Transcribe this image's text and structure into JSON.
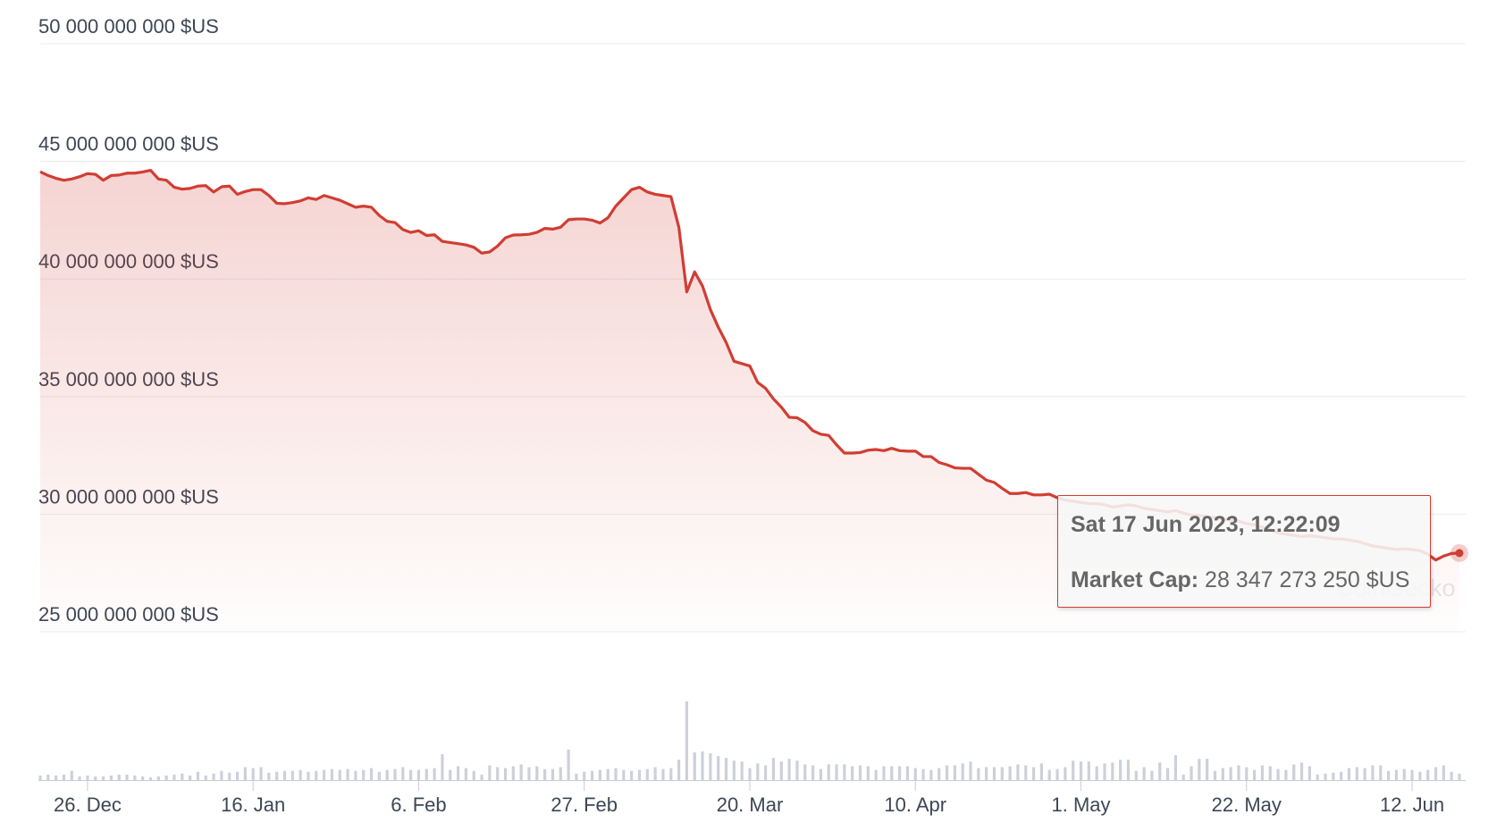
{
  "chart_data": {
    "type": "line",
    "categories": [
      null,
      null,
      null,
      null,
      null,
      null,
      "26. Dec",
      null,
      null,
      null,
      null,
      null,
      null,
      null,
      null,
      null,
      null,
      null,
      null,
      null,
      null,
      null,
      null,
      null,
      null,
      null,
      null,
      "16. Jan",
      null,
      null,
      null,
      null,
      null,
      null,
      null,
      null,
      null,
      null,
      null,
      null,
      null,
      null,
      null,
      null,
      null,
      null,
      null,
      null,
      "6. Feb",
      null,
      null,
      null,
      null,
      null,
      null,
      null,
      null,
      null,
      null,
      null,
      null,
      null,
      null,
      null,
      null,
      null,
      null,
      null,
      null,
      "27. Feb",
      null,
      null,
      null,
      null,
      null,
      null,
      null,
      null,
      null,
      null,
      null,
      null,
      null,
      null,
      null,
      null,
      null,
      null,
      null,
      null,
      "20. Mar",
      null,
      null,
      null,
      null,
      null,
      null,
      null,
      null,
      null,
      null,
      null,
      null,
      null,
      null,
      null,
      null,
      null,
      null,
      null,
      null,
      "10. Apr",
      null,
      null,
      null,
      null,
      null,
      null,
      null,
      null,
      null,
      null,
      null,
      null,
      null,
      null,
      null,
      null,
      null,
      null,
      null,
      null,
      "1. May",
      null,
      null,
      null,
      null,
      null,
      null,
      null,
      null,
      null,
      null,
      null,
      null,
      null,
      null,
      null,
      null,
      null,
      null,
      null,
      null,
      "22. May",
      null,
      null,
      null,
      null,
      null,
      null,
      null,
      null,
      null,
      null,
      null,
      null,
      null,
      null,
      null,
      null,
      null,
      null,
      null,
      null,
      "12. Jun",
      null,
      null,
      null,
      null,
      null,
      null
    ],
    "series": [
      {
        "color": "#d13d33",
        "values": [
          44560000000.0,
          44400000000.0,
          44280000000.0,
          44200000000.0,
          44250000000.0,
          44350000000.0,
          44480000000.0,
          44450000000.0,
          44200000000.0,
          44400000000.0,
          44420000000.0,
          44500000000.0,
          44500000000.0,
          44550000000.0,
          44620000000.0,
          44250000000.0,
          44200000000.0,
          43900000000.0,
          43820000000.0,
          43850000000.0,
          43950000000.0,
          43970000000.0,
          43700000000.0,
          43920000000.0,
          43950000000.0,
          43600000000.0,
          43720000000.0,
          43800000000.0,
          43800000000.0,
          43550000000.0,
          43220000000.0,
          43200000000.0,
          43250000000.0,
          43320000000.0,
          43450000000.0,
          43380000000.0,
          43550000000.0,
          43450000000.0,
          43350000000.0,
          43200000000.0,
          43050000000.0,
          43100000000.0,
          43050000000.0,
          42700000000.0,
          42450000000.0,
          42400000000.0,
          42100000000.0,
          41980000000.0,
          42050000000.0,
          41850000000.0,
          41880000000.0,
          41600000000.0,
          41550000000.0,
          41500000000.0,
          41450000000.0,
          41350000000.0,
          41100000000.0,
          41150000000.0,
          41400000000.0,
          41750000000.0,
          41870000000.0,
          41880000000.0,
          41900000000.0,
          41980000000.0,
          42150000000.0,
          42120000000.0,
          42200000000.0,
          42520000000.0,
          42550000000.0,
          42550000000.0,
          42500000000.0,
          42380000000.0,
          42600000000.0,
          43100000000.0,
          43450000000.0,
          43800000000.0,
          43900000000.0,
          43700000000.0,
          43600000000.0,
          43550000000.0,
          43500000000.0,
          42200000000.0,
          39450000000.0,
          40300000000.0,
          39700000000.0,
          38700000000.0,
          37950000000.0,
          37300000000.0,
          36500000000.0,
          36400000000.0,
          36300000000.0,
          35600000000.0,
          35350000000.0,
          34900000000.0,
          34550000000.0,
          34120000000.0,
          34100000000.0,
          33900000000.0,
          33550000000.0,
          33400000000.0,
          33350000000.0,
          32950000000.0,
          32600000000.0,
          32600000000.0,
          32620000000.0,
          32720000000.0,
          32750000000.0,
          32700000000.0,
          32800000000.0,
          32700000000.0,
          32680000000.0,
          32680000000.0,
          32450000000.0,
          32450000000.0,
          32200000000.0,
          32100000000.0,
          31970000000.0,
          31950000000.0,
          31950000000.0,
          31700000000.0,
          31450000000.0,
          31350000000.0,
          31100000000.0,
          30880000000.0,
          30880000000.0,
          30920000000.0,
          30820000000.0,
          30820000000.0,
          30850000000.0,
          30700000000.0,
          30600000000.0,
          30550000000.0,
          30500000000.0,
          30450000000.0,
          30450000000.0,
          30400000000.0,
          30300000000.0,
          30350000000.0,
          30400000000.0,
          30350000000.0,
          30250000000.0,
          30200000000.0,
          30150000000.0,
          30100000000.0,
          30150000000.0,
          30050000000.0,
          29950000000.0,
          29950000000.0,
          29900000000.0,
          29850000000.0,
          29800000000.0,
          29750000000.0,
          29700000000.0,
          29600000000.0,
          29550000000.0,
          29450000000.0,
          29350000000.0,
          29200000000.0,
          29150000000.0,
          29100000000.0,
          29050000000.0,
          29080000000.0,
          29050000000.0,
          29000000000.0,
          28950000000.0,
          28950000000.0,
          28900000000.0,
          28850000000.0,
          28750000000.0,
          28650000000.0,
          28600000000.0,
          28550000000.0,
          28500000000.0,
          28520000000.0,
          28500000000.0,
          28450000000.0,
          28300000000.0,
          28050000000.0,
          28220000000.0,
          28330000000.0,
          28347273250
        ]
      }
    ],
    "volume": {
      "color": "#cdd0dc",
      "values": [
        5,
        6,
        5,
        6,
        10,
        4,
        5,
        4,
        4,
        5,
        6,
        6,
        5,
        4,
        3,
        4,
        5,
        6,
        7,
        5,
        9,
        5,
        7,
        10,
        8,
        9,
        14,
        13,
        14,
        8,
        9,
        10,
        10,
        11,
        9,
        10,
        11,
        12,
        11,
        12,
        10,
        11,
        13,
        9,
        11,
        12,
        14,
        11,
        11,
        12,
        13,
        28,
        11,
        15,
        13,
        10,
        6,
        16,
        14,
        13,
        15,
        17,
        14,
        15,
        12,
        12,
        14,
        33,
        7,
        9,
        10,
        11,
        12,
        13,
        11,
        10,
        11,
        12,
        14,
        12,
        13,
        22,
        85,
        30,
        31,
        29,
        26,
        24,
        21,
        20,
        13,
        18,
        16,
        24,
        20,
        23,
        21,
        17,
        16,
        12,
        17,
        17,
        17,
        15,
        16,
        15,
        11,
        15,
        15,
        15,
        15,
        13,
        12,
        11,
        13,
        16,
        16,
        18,
        20,
        13,
        14,
        14,
        14,
        15,
        17,
        16,
        14,
        18,
        11,
        12,
        14,
        21,
        20,
        20,
        15,
        18,
        19,
        22,
        22,
        10,
        14,
        10,
        19,
        13,
        27,
        6,
        15,
        23,
        23,
        10,
        13,
        14,
        16,
        14,
        11,
        16,
        15,
        12,
        11,
        17,
        19,
        15,
        6,
        7,
        8,
        9,
        13,
        14,
        13,
        16,
        16,
        10,
        11,
        12,
        11,
        9,
        11,
        14,
        16,
        9,
        7
      ]
    },
    "ylim": [
      25000000000.0,
      50000000000.0
    ],
    "yticks": [
      {
        "value": 25000000000.0,
        "label": "25 000 000 000 $US"
      },
      {
        "value": 30000000000.0,
        "label": "30 000 000 000 $US"
      },
      {
        "value": 35000000000.0,
        "label": "35 000 000 000 $US"
      },
      {
        "value": 40000000000.0,
        "label": "40 000 000 000 $US"
      },
      {
        "value": 45000000000.0,
        "label": "45 000 000 000 $US"
      },
      {
        "value": 50000000000.0,
        "label": "50 000 000 000 $US"
      }
    ],
    "grid": true,
    "watermark": "CoinGecko",
    "tooltip": {
      "title": "Sat 17 Jun 2023, 12:22:09",
      "label": "Market Cap:",
      "value": 28347273250,
      "value_label": "28 347 273 250 $US"
    }
  }
}
